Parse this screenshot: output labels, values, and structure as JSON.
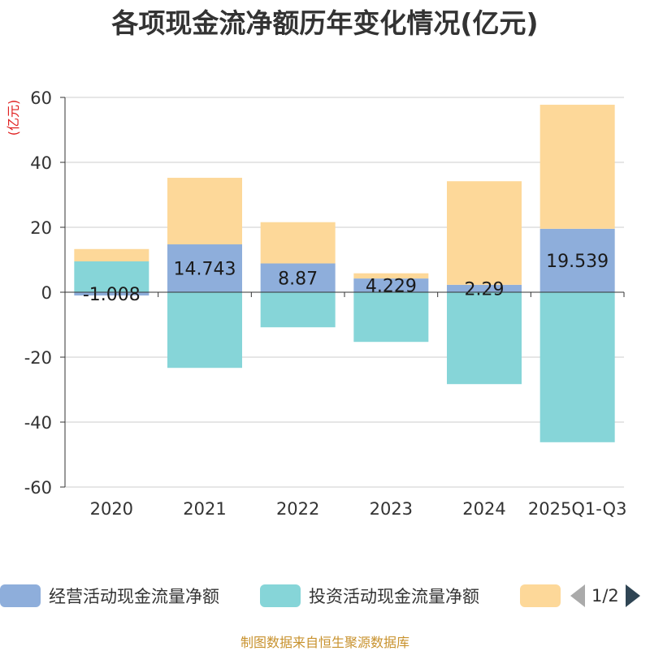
{
  "title": "各项现金流净额历年变化情况(亿元)",
  "source": "制图数据来自恒生聚源数据库",
  "colors": {
    "operating": "#8eaedb",
    "investing": "#86d5d8",
    "financing": "#fdd899",
    "unit_label": "#e02020",
    "pager_active": "#2f4554",
    "pager_inactive": "#aaaaaa"
  },
  "legend": {
    "items": [
      {
        "label": "经营活动现金流量净额",
        "color": "#8eaedb"
      },
      {
        "label": "投资活动现金流量净额",
        "color": "#86d5d8"
      },
      {
        "label": "",
        "color": "#fdd899"
      }
    ],
    "page": "1/2"
  },
  "chart_data": {
    "type": "bar",
    "stacked": true,
    "title": "各项现金流净额历年变化情况(亿元)",
    "ylabel": "(亿元)",
    "xlabel": "",
    "ylim": [
      -60,
      60
    ],
    "yticks": [
      60,
      40,
      20,
      0,
      -20,
      -40,
      -60
    ],
    "categories": [
      "2020",
      "2021",
      "2022",
      "2023",
      "2024",
      "2025Q1-Q3"
    ],
    "series": [
      {
        "name": "经营活动现金流量净额",
        "color": "#8eaedb",
        "values": [
          -1.008,
          14.743,
          8.87,
          4.229,
          2.29,
          19.539
        ],
        "labels": [
          "-1.008",
          "14.743",
          "8.87",
          "4.229",
          "2.29",
          "19.539"
        ]
      },
      {
        "name": "投资活动现金流量净额",
        "color": "#86d5d8",
        "values": [
          9.5,
          -23.3,
          -10.8,
          -15.3,
          -28.3,
          -46.2
        ]
      },
      {
        "name": "",
        "color": "#fdd899",
        "values": [
          3.8,
          20.5,
          12.7,
          1.6,
          31.9,
          38.2
        ]
      }
    ]
  }
}
